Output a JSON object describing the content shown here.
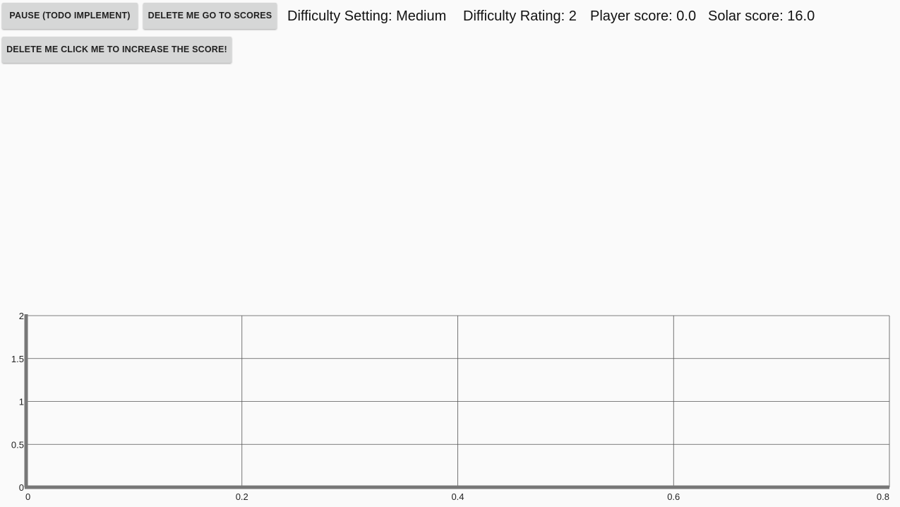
{
  "toolbar": {
    "pause_label": "PAUSE (TODO IMPLEMENT)",
    "scores_label": "DELETE ME GO TO SCORES",
    "increase_label": "DELETE ME CLICK ME TO INCREASE THE SCORE!"
  },
  "status": {
    "difficulty_setting": "Difficulty Setting: Medium",
    "difficulty_rating": "Difficulty Rating: 2",
    "player_score": "Player score: 0.0",
    "solar_score": "Solar score: 16.0"
  },
  "colors": {
    "background": "#fafafa",
    "button": "#d6d7d7",
    "grid": "#555555",
    "axis": "#777777"
  },
  "chart_data": {
    "type": "line",
    "title": "",
    "xlabel": "",
    "ylabel": "",
    "xlim": [
      0,
      0.8
    ],
    "ylim": [
      0,
      2
    ],
    "x_ticks": [
      "0",
      "0.2",
      "0.4",
      "0.6",
      "0.8"
    ],
    "y_ticks": [
      "0",
      "0.5",
      "1",
      "1.5",
      "2"
    ],
    "grid": true,
    "series": []
  }
}
